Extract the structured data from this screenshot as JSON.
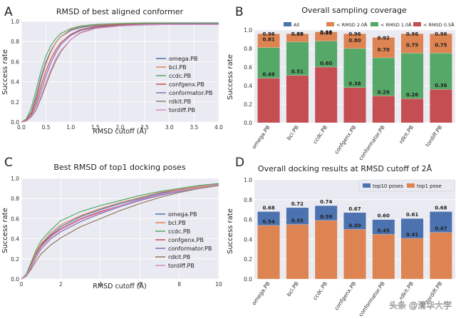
{
  "figure": {
    "watermark": "头条 @清华大学"
  },
  "chart_data": [
    {
      "panel_letter": "A",
      "type": "line",
      "title": "RMSD of best aligned conformer",
      "xlabel": "RMSD cutoff (Å)",
      "ylabel": "Success rate",
      "xlim": [
        0,
        4.0
      ],
      "ylim": [
        0,
        1.0
      ],
      "xticks": [
        "0.0",
        "0.5",
        "1.0",
        "1.5",
        "2.0",
        "2.5",
        "3.0",
        "3.5",
        "4.0"
      ],
      "yticks": [
        "0.0",
        "0.2",
        "0.4",
        "0.6",
        "0.8",
        "1.0"
      ],
      "grid": true,
      "legend_position": "right",
      "x": [
        0,
        0.1,
        0.2,
        0.3,
        0.4,
        0.5,
        0.6,
        0.7,
        0.8,
        1.0,
        1.2,
        1.5,
        2.0,
        2.5,
        3.0,
        3.5,
        4.0
      ],
      "series": [
        {
          "name": "omega.PB",
          "color": "#4c72b0",
          "values": [
            0,
            0.02,
            0.1,
            0.26,
            0.45,
            0.6,
            0.71,
            0.79,
            0.85,
            0.91,
            0.94,
            0.96,
            0.97,
            0.975,
            0.98,
            0.98,
            0.98
          ]
        },
        {
          "name": "bcl.PB",
          "color": "#dd8452",
          "values": [
            0,
            0.02,
            0.09,
            0.23,
            0.42,
            0.58,
            0.7,
            0.79,
            0.85,
            0.92,
            0.95,
            0.965,
            0.975,
            0.98,
            0.98,
            0.98,
            0.98
          ]
        },
        {
          "name": "ccdc.PB",
          "color": "#55a868",
          "values": [
            0,
            0.03,
            0.14,
            0.32,
            0.51,
            0.66,
            0.76,
            0.83,
            0.88,
            0.93,
            0.955,
            0.97,
            0.98,
            0.985,
            0.985,
            0.985,
            0.985
          ]
        },
        {
          "name": "confgenx.PB",
          "color": "#c44e52",
          "values": [
            0,
            0.02,
            0.08,
            0.2,
            0.36,
            0.51,
            0.63,
            0.72,
            0.79,
            0.87,
            0.92,
            0.95,
            0.965,
            0.97,
            0.975,
            0.975,
            0.975
          ]
        },
        {
          "name": "conformator.PB",
          "color": "#8172b3",
          "values": [
            0,
            0.01,
            0.06,
            0.16,
            0.31,
            0.46,
            0.59,
            0.69,
            0.77,
            0.86,
            0.91,
            0.94,
            0.96,
            0.97,
            0.975,
            0.975,
            0.975
          ]
        },
        {
          "name": "rdkit.PB",
          "color": "#937860",
          "values": [
            0,
            0.01,
            0.05,
            0.12,
            0.24,
            0.37,
            0.5,
            0.61,
            0.7,
            0.82,
            0.89,
            0.935,
            0.955,
            0.965,
            0.97,
            0.97,
            0.97
          ]
        },
        {
          "name": "tordiff.PB",
          "color": "#da8bc3",
          "values": [
            0,
            0.01,
            0.05,
            0.13,
            0.26,
            0.4,
            0.52,
            0.63,
            0.71,
            0.82,
            0.885,
            0.93,
            0.955,
            0.965,
            0.97,
            0.97,
            0.97
          ]
        }
      ]
    },
    {
      "panel_letter": "B",
      "type": "bar",
      "title": "Overall sampling coverage",
      "xlabel": "",
      "ylabel": "Success rate",
      "ylim": [
        0,
        1.0
      ],
      "yticks": [
        "0.0",
        "0.2",
        "0.4",
        "0.6",
        "0.8",
        "1.0"
      ],
      "grid": true,
      "legend_position": "top",
      "categories": [
        "omega.PB",
        "bcl.PB",
        "ccdc.PB",
        "confgenx.PB",
        "conformator.PB",
        "rdkit.PB",
        "tordiff.PB"
      ],
      "series": [
        {
          "name": "All",
          "color": "#4c72b0",
          "values": [
            0.96,
            0.96,
            0.98,
            0.96,
            0.92,
            0.96,
            0.96
          ]
        },
        {
          "name": "< RMSD 2.0Å",
          "color": "#dd8452",
          "values": [
            0.96,
            0.96,
            0.98,
            0.96,
            0.92,
            0.96,
            0.96
          ]
        },
        {
          "name": "< RMSD 1.0Å",
          "color": "#55a868",
          "values": [
            0.81,
            0.87,
            0.88,
            0.8,
            0.7,
            0.75,
            0.75
          ]
        },
        {
          "name": "< RMSD 0.5Å",
          "color": "#c44e52",
          "values": [
            0.48,
            0.51,
            0.6,
            0.38,
            0.29,
            0.26,
            0.36
          ]
        }
      ],
      "labels_all": [
        "0.96",
        "0.96",
        "0.98",
        "0.96",
        "0.92",
        "0.96",
        "0.96"
      ],
      "labels_rmsd1": [
        "0.81",
        "0.87",
        "0.88",
        "0.80",
        "0.70",
        "0.75",
        "0.75"
      ],
      "labels_rmsd05": [
        "0.48",
        "0.51",
        "0.60",
        "0.38",
        "0.29",
        "0.26",
        "0.36"
      ]
    },
    {
      "panel_letter": "C",
      "type": "line",
      "title": "Best RMSD of top1 docking poses",
      "xlabel": "RMSD cutoff (Å)",
      "ylabel": "Success rate",
      "xlim": [
        0,
        10
      ],
      "ylim": [
        0,
        1.0
      ],
      "xticks": [
        "0",
        "2",
        "4",
        "6",
        "8",
        "10"
      ],
      "yticks": [
        "0.0",
        "0.2",
        "0.4",
        "0.6",
        "0.8",
        "1.0"
      ],
      "grid": true,
      "legend_position": "right",
      "x": [
        0,
        0.25,
        0.5,
        0.75,
        1,
        1.5,
        2,
        3,
        4,
        5,
        6,
        7,
        8,
        9,
        10
      ],
      "series": [
        {
          "name": "omega.PB",
          "color": "#4c72b0",
          "values": [
            0,
            0.04,
            0.14,
            0.26,
            0.34,
            0.44,
            0.52,
            0.62,
            0.69,
            0.75,
            0.8,
            0.85,
            0.89,
            0.92,
            0.94
          ]
        },
        {
          "name": "bcl.PB",
          "color": "#dd8452",
          "values": [
            0,
            0.04,
            0.15,
            0.27,
            0.35,
            0.46,
            0.54,
            0.63,
            0.7,
            0.76,
            0.81,
            0.86,
            0.89,
            0.92,
            0.94
          ]
        },
        {
          "name": "ccdc.PB",
          "color": "#55a868",
          "values": [
            0,
            0.05,
            0.17,
            0.29,
            0.38,
            0.49,
            0.58,
            0.67,
            0.73,
            0.78,
            0.83,
            0.87,
            0.9,
            0.93,
            0.95
          ]
        },
        {
          "name": "confgenx.PB",
          "color": "#c44e52",
          "values": [
            0,
            0.04,
            0.14,
            0.25,
            0.33,
            0.43,
            0.5,
            0.6,
            0.67,
            0.73,
            0.79,
            0.84,
            0.88,
            0.91,
            0.94
          ]
        },
        {
          "name": "conformator.PB",
          "color": "#8172b3",
          "values": [
            0,
            0.03,
            0.12,
            0.22,
            0.3,
            0.4,
            0.47,
            0.57,
            0.65,
            0.72,
            0.78,
            0.83,
            0.87,
            0.91,
            0.93
          ]
        },
        {
          "name": "rdkit.PB",
          "color": "#937860",
          "values": [
            0,
            0.03,
            0.1,
            0.18,
            0.25,
            0.34,
            0.41,
            0.52,
            0.6,
            0.68,
            0.75,
            0.81,
            0.86,
            0.9,
            0.93
          ]
        },
        {
          "name": "tordiff.PB",
          "color": "#da8bc3",
          "values": [
            0,
            0.04,
            0.13,
            0.24,
            0.32,
            0.42,
            0.49,
            0.59,
            0.66,
            0.73,
            0.79,
            0.84,
            0.88,
            0.91,
            0.94
          ]
        }
      ]
    },
    {
      "panel_letter": "D",
      "type": "bar",
      "title": "Overall docking results at RMSD cutoff of 2Å",
      "xlabel": "",
      "ylabel": "Success rate",
      "ylim": [
        0,
        1.0
      ],
      "yticks": [
        "0.0",
        "0.2",
        "0.4",
        "0.6",
        "0.8",
        "1.0"
      ],
      "grid": true,
      "legend_position": "top-right",
      "categories": [
        "omega.PB",
        "bcl.PB",
        "ccdc.PB",
        "confgenx.PB",
        "conformator.PB",
        "rdkit.PB",
        "tordiff.PB"
      ],
      "series": [
        {
          "name": "top10 poses",
          "color": "#4c72b0",
          "values": [
            0.68,
            0.72,
            0.74,
            0.67,
            0.6,
            0.61,
            0.68
          ]
        },
        {
          "name": "top1 pose",
          "color": "#dd8452",
          "values": [
            0.54,
            0.55,
            0.59,
            0.5,
            0.45,
            0.41,
            0.47
          ]
        }
      ],
      "labels_top10": [
        "0.68",
        "0.72",
        "0.74",
        "0.67",
        "0.60",
        "0.61",
        "0.68"
      ],
      "labels_top1": [
        "0.54",
        "0.55",
        "0.59",
        "0.50",
        "0.45",
        "0.41",
        "0.47"
      ]
    }
  ]
}
